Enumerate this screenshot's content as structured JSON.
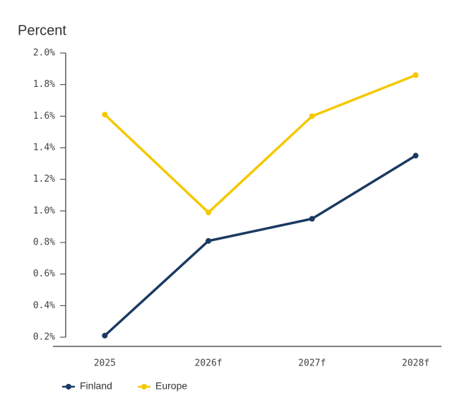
{
  "chart_data": {
    "type": "line",
    "title": "Percent",
    "categories": [
      "2025",
      "2026f",
      "2027f",
      "2028f"
    ],
    "series": [
      {
        "name": "Finland",
        "color": "#1b3a61",
        "values": [
          0.21,
          0.81,
          0.95,
          1.35
        ]
      },
      {
        "name": "Europe",
        "color": "#f5c800",
        "values": [
          1.61,
          0.99,
          1.6,
          1.86
        ]
      }
    ],
    "ylim": [
      0.2,
      2.0
    ],
    "yticks": [
      {
        "value": 0.2,
        "label": "0.2%"
      },
      {
        "value": 0.4,
        "label": "0.4%"
      },
      {
        "value": 0.6,
        "label": "0.6%"
      },
      {
        "value": 0.8,
        "label": "0.8%"
      },
      {
        "value": 1.0,
        "label": "1.0%"
      },
      {
        "value": 1.2,
        "label": "1.2%"
      },
      {
        "value": 1.4,
        "label": "1.4%"
      },
      {
        "value": 1.6,
        "label": "1.6%"
      },
      {
        "value": 1.8,
        "label": "1.8%"
      },
      {
        "value": 2.0,
        "label": "2.0%"
      }
    ],
    "grid": false
  }
}
